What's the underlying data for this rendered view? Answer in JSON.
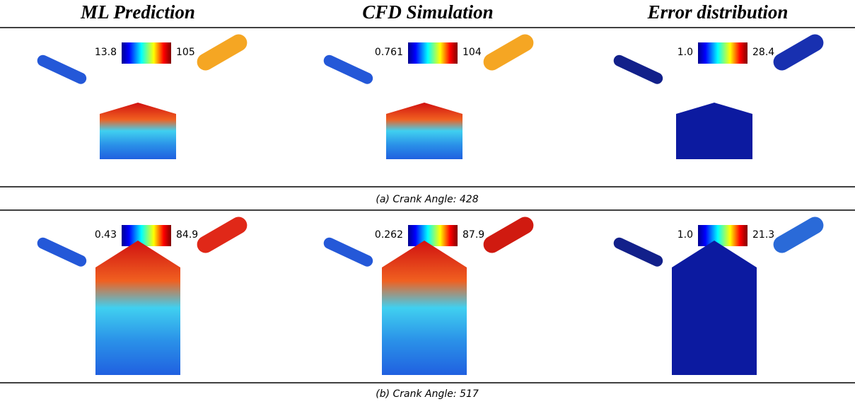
{
  "headers": [
    "ML Prediction",
    "CFD Simulation",
    "Error distribution"
  ],
  "rows": [
    {
      "caption": "(a) Crank Angle: 428",
      "panels": [
        {
          "min": "13.8",
          "max": "105"
        },
        {
          "min": "0.761",
          "max": "104"
        },
        {
          "min": "1.0",
          "max": "28.4"
        }
      ]
    },
    {
      "caption": "(b) Crank Angle: 517",
      "panels": [
        {
          "min": "0.43",
          "max": "84.9"
        },
        {
          "min": "0.262",
          "max": "87.9"
        },
        {
          "min": "1.0",
          "max": "21.3"
        }
      ]
    }
  ]
}
